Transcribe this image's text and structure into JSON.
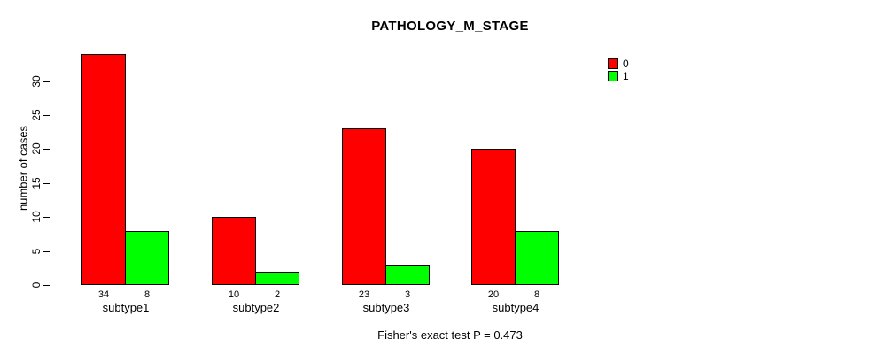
{
  "chart_data": {
    "type": "bar",
    "title": "PATHOLOGY_M_STAGE",
    "ylabel": "number of cases",
    "xlabel": "",
    "categories": [
      "subtype1",
      "subtype2",
      "subtype3",
      "subtype4"
    ],
    "series": [
      {
        "name": "0",
        "color": "#FF0000",
        "values": [
          34,
          10,
          23,
          20
        ]
      },
      {
        "name": "1",
        "color": "#00FF00",
        "values": [
          8,
          2,
          3,
          8
        ]
      }
    ],
    "bar_value_labels": [
      [
        34,
        8
      ],
      [
        10,
        2
      ],
      [
        23,
        3
      ],
      [
        20,
        8
      ]
    ],
    "ylim": [
      0,
      30
    ],
    "yticks": [
      0,
      5,
      10,
      15,
      20,
      25,
      30
    ],
    "grid": false,
    "legend_position": "top-right",
    "annotation": "Fisher's exact test P = 0.473",
    "colors": {
      "series0": "#FF0000",
      "series1": "#00FF00",
      "axis": "#000000",
      "background": "#FFFFFF"
    }
  }
}
